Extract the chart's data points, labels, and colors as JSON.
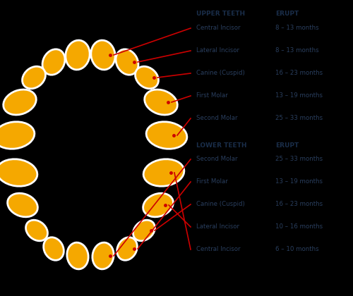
{
  "background_color": "#000000",
  "tooth_color": "#F5A800",
  "tooth_edge_color": "#FFFFFF",
  "line_color": "#CC0000",
  "text_color_header": "#1a2e4a",
  "text_color_label": "#2a3f5f",
  "text_color_value": "#2a3f5f",
  "upper_header": "UPPER TEETH",
  "lower_header": "LOWER TEETH",
  "erupt_header": "ERUPT",
  "upper_teeth": [
    {
      "name": "Central Incisor",
      "erupt": "8 – 13 months"
    },
    {
      "name": "Lateral Incisor",
      "erupt": "8 – 13 months"
    },
    {
      "name": "Canine (Cuspid)",
      "erupt": "16 – 23 months"
    },
    {
      "name": "First Molar",
      "erupt": "13 – 19 months"
    },
    {
      "name": "Second Molar",
      "erupt": "25 – 33 months"
    }
  ],
  "lower_teeth": [
    {
      "name": "Second Molar",
      "erupt": "25 – 33 months"
    },
    {
      "name": "First Molar",
      "erupt": "13 – 19 months"
    },
    {
      "name": "Canine (Cuspid)",
      "erupt": "16 – 23 months"
    },
    {
      "name": "Lateral Incisor",
      "erupt": "10 – 16 months"
    },
    {
      "name": "Central Incisor",
      "erupt": "6 – 10 months"
    }
  ]
}
